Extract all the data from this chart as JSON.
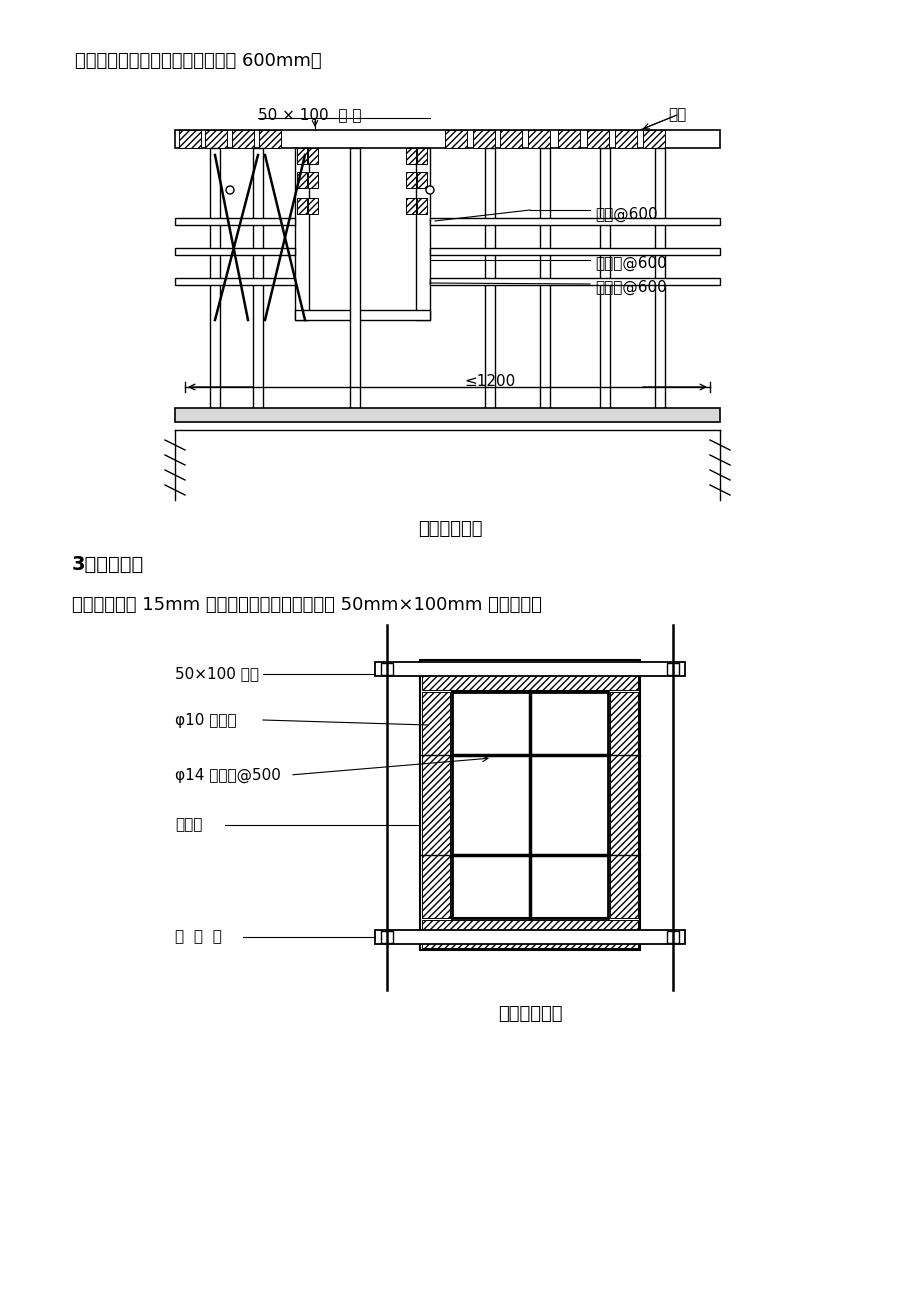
{
  "page_bg": "#ffffff",
  "text_color": "#000000",
  "line_color": "#000000",
  "top_text": "杆）一般沿梁长设置，间距不大于 600mm。",
  "diagram1_title": "梁、板加固图",
  "diagram2_title": "柱配模加固图",
  "section3_title": "3、柱模配设",
  "section3_text": "柱模面板采用 15mm 厚多层板。龙骨采用截面为 50mm×100mm 的方木。其",
  "label_50x100": "50 × 100  方 木",
  "label_mianban": "面板",
  "label_ganguan600": "钒管@600",
  "label_xiezhanggan600": "斜撇杆@600",
  "label_jiamogan600": "夹模杆@600",
  "label_le1200": "≤1200",
  "label_50x100_b": "50×100 方木",
  "label_phi10": "φ10 撇模棍",
  "label_phi14": "φ14 对拉杆@500",
  "label_duocengban": "多层板",
  "label_ganguan_zhao": "钒  管  筠"
}
